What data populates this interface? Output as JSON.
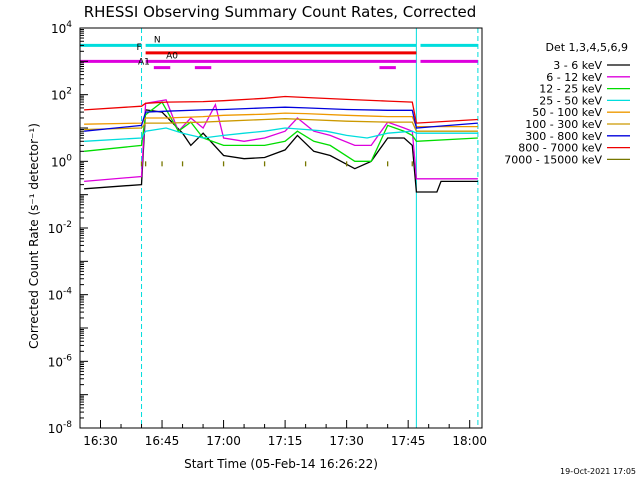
{
  "chart_data": {
    "type": "line",
    "title": "RHESSI Observing Summary Count Rates, Corrected",
    "xlabel": "Start Time (05-Feb-14 16:26:22)",
    "ylabel": "Corrected Count Rate (s⁻¹ detector⁻¹)",
    "y_scale": "log",
    "xlim": [
      "16:25",
      "18:03"
    ],
    "ylim": [
      1e-08,
      10000.0
    ],
    "x_ticks": [
      "16:30",
      "16:45",
      "17:00",
      "17:15",
      "17:30",
      "17:45",
      "18:00"
    ],
    "y_ticks": [
      {
        "value": 10000.0,
        "base": "10",
        "exp": "4"
      },
      {
        "value": 100,
        "base": "10",
        "exp": "2"
      },
      {
        "value": 1,
        "base": "10",
        "exp": "0"
      },
      {
        "value": 0.01,
        "base": "10",
        "exp": "-2"
      },
      {
        "value": 0.0001,
        "base": "10",
        "exp": "-4"
      },
      {
        "value": 1e-06,
        "base": "10",
        "exp": "-6"
      },
      {
        "value": 1e-08,
        "base": "10",
        "exp": "-8"
      }
    ],
    "legend": {
      "header": "Det 1,3,4,5,6,9",
      "placement": "right-outside"
    },
    "series": [
      {
        "name": "3 - 6 keV",
        "color": "#000000",
        "points": [
          [
            "16:26",
            0.15
          ],
          [
            "16:40",
            0.2
          ],
          [
            "16:41",
            35
          ],
          [
            "16:45",
            30
          ],
          [
            "16:50",
            7
          ],
          [
            "16:52",
            3
          ],
          [
            "16:55",
            7
          ],
          [
            "17:00",
            1.5
          ],
          [
            "17:05",
            1.2
          ],
          [
            "17:10",
            1.3
          ],
          [
            "17:15",
            2.2
          ],
          [
            "17:18",
            6
          ],
          [
            "17:22",
            2
          ],
          [
            "17:26",
            1.5
          ],
          [
            "17:32",
            0.6
          ],
          [
            "17:36",
            1.0
          ],
          [
            "17:40",
            5
          ],
          [
            "17:44",
            5
          ],
          [
            "17:46",
            3
          ],
          [
            "17:47",
            0.12
          ],
          [
            "17:52",
            0.12
          ],
          [
            "17:53",
            0.25
          ],
          [
            "18:02",
            0.25
          ]
        ]
      },
      {
        "name": "6 - 12 keV",
        "color": "#dd00dd",
        "points": [
          [
            "16:26",
            0.25
          ],
          [
            "16:40",
            0.35
          ],
          [
            "16:41",
            55
          ],
          [
            "16:46",
            70
          ],
          [
            "16:49",
            8
          ],
          [
            "16:52",
            20
          ],
          [
            "16:55",
            10
          ],
          [
            "16:58",
            50
          ],
          [
            "17:00",
            5
          ],
          [
            "17:05",
            4
          ],
          [
            "17:10",
            5
          ],
          [
            "17:15",
            8
          ],
          [
            "17:18",
            20
          ],
          [
            "17:22",
            8
          ],
          [
            "17:26",
            6
          ],
          [
            "17:32",
            3
          ],
          [
            "17:36",
            3
          ],
          [
            "17:40",
            15
          ],
          [
            "17:44",
            10
          ],
          [
            "17:46",
            8
          ],
          [
            "17:47",
            0.3
          ],
          [
            "18:02",
            0.3
          ]
        ]
      },
      {
        "name": "12 - 25 keV",
        "color": "#00dd00",
        "points": [
          [
            "16:26",
            2
          ],
          [
            "16:40",
            3
          ],
          [
            "16:41",
            25
          ],
          [
            "16:45",
            60
          ],
          [
            "16:49",
            8
          ],
          [
            "16:52",
            15
          ],
          [
            "16:55",
            5
          ],
          [
            "17:00",
            3
          ],
          [
            "17:05",
            3
          ],
          [
            "17:10",
            3
          ],
          [
            "17:15",
            4
          ],
          [
            "17:18",
            8
          ],
          [
            "17:22",
            4
          ],
          [
            "17:26",
            3
          ],
          [
            "17:32",
            1
          ],
          [
            "17:36",
            1
          ],
          [
            "17:40",
            12
          ],
          [
            "17:44",
            8
          ],
          [
            "17:46",
            6
          ],
          [
            "17:47",
            4
          ],
          [
            "18:02",
            5
          ]
        ]
      },
      {
        "name": "25 - 50 keV",
        "color": "#00dddd",
        "points": [
          [
            "16:26",
            4
          ],
          [
            "16:40",
            5
          ],
          [
            "16:41",
            8
          ],
          [
            "16:46",
            10
          ],
          [
            "16:50",
            7
          ],
          [
            "16:55",
            5
          ],
          [
            "17:00",
            6
          ],
          [
            "17:05",
            7
          ],
          [
            "17:10",
            8
          ],
          [
            "17:15",
            10
          ],
          [
            "17:20",
            9
          ],
          [
            "17:25",
            8
          ],
          [
            "17:30",
            6
          ],
          [
            "17:35",
            5
          ],
          [
            "17:40",
            7
          ],
          [
            "17:46",
            8
          ],
          [
            "17:47",
            7
          ],
          [
            "18:02",
            7
          ]
        ]
      },
      {
        "name": "50 - 100 keV",
        "color": "#ee9900",
        "points": [
          [
            "16:26",
            13
          ],
          [
            "16:40",
            14
          ],
          [
            "16:41",
            20
          ],
          [
            "16:46",
            20
          ],
          [
            "16:55",
            22
          ],
          [
            "17:00",
            24
          ],
          [
            "17:10",
            26
          ],
          [
            "17:15",
            28
          ],
          [
            "17:20",
            27
          ],
          [
            "17:30",
            24
          ],
          [
            "17:40",
            22
          ],
          [
            "17:46",
            22
          ],
          [
            "17:47",
            11
          ],
          [
            "18:02",
            11
          ]
        ]
      },
      {
        "name": "100 - 300 keV",
        "color": "#cc9900",
        "points": [
          [
            "16:26",
            9
          ],
          [
            "16:40",
            10
          ],
          [
            "16:41",
            14
          ],
          [
            "16:46",
            14
          ],
          [
            "16:55",
            15
          ],
          [
            "17:00",
            16
          ],
          [
            "17:10",
            18
          ],
          [
            "17:15",
            19
          ],
          [
            "17:20",
            18
          ],
          [
            "17:30",
            16
          ],
          [
            "17:40",
            15
          ],
          [
            "17:46",
            15
          ],
          [
            "17:47",
            8
          ],
          [
            "18:02",
            8
          ]
        ]
      },
      {
        "name": "300 - 800 keV",
        "color": "#0000dd",
        "points": [
          [
            "16:26",
            8
          ],
          [
            "16:40",
            12
          ],
          [
            "16:41",
            30
          ],
          [
            "16:46",
            32
          ],
          [
            "16:55",
            35
          ],
          [
            "17:00",
            36
          ],
          [
            "17:10",
            40
          ],
          [
            "17:15",
            42
          ],
          [
            "17:20",
            40
          ],
          [
            "17:30",
            36
          ],
          [
            "17:40",
            34
          ],
          [
            "17:46",
            34
          ],
          [
            "17:47",
            10
          ],
          [
            "18:02",
            14
          ]
        ]
      },
      {
        "name": "800 - 7000 keV",
        "color": "#ee0000",
        "points": [
          [
            "16:26",
            35
          ],
          [
            "16:40",
            45
          ],
          [
            "16:41",
            55
          ],
          [
            "16:46",
            60
          ],
          [
            "16:55",
            62
          ],
          [
            "17:00",
            66
          ],
          [
            "17:10",
            78
          ],
          [
            "17:15",
            88
          ],
          [
            "17:20",
            82
          ],
          [
            "17:30",
            72
          ],
          [
            "17:40",
            64
          ],
          [
            "17:46",
            60
          ],
          [
            "17:47",
            14
          ],
          [
            "18:02",
            18
          ]
        ]
      },
      {
        "name": "7000 - 15000 keV",
        "color": "#777700",
        "points": [
          [
            "16:40",
            1.0
          ],
          [
            "16:41",
            1.0
          ],
          [
            "16:45",
            1.0
          ],
          [
            "16:50",
            1.0
          ],
          [
            "17:00",
            1.0
          ],
          [
            "17:10",
            1.0
          ],
          [
            "17:20",
            1.0
          ],
          [
            "17:30",
            1.0
          ],
          [
            "17:40",
            1.0
          ],
          [
            "17:46",
            1.0
          ]
        ]
      }
    ],
    "flags": [
      {
        "label": "N",
        "color": "#00dddd",
        "y_value": 3000,
        "segments": [
          [
            "16:25",
            "16:40"
          ],
          [
            "16:41",
            "17:47"
          ],
          [
            "17:48",
            "18:02"
          ]
        ]
      },
      {
        "label": "F",
        "color": "#ee0000",
        "y_value": 1800,
        "segments": [
          [
            "16:41",
            "17:47"
          ]
        ]
      },
      {
        "label": "A0",
        "color": "#dd00dd",
        "y_value": 1000,
        "segments": [
          [
            "16:25",
            "16:40"
          ],
          [
            "16:41",
            "17:47"
          ],
          [
            "17:48",
            "18:02"
          ]
        ]
      },
      {
        "label": "A1",
        "color": "#dd00dd",
        "y_value": 650,
        "segments": [
          [
            "16:43",
            "16:47"
          ],
          [
            "16:53",
            "16:57"
          ],
          [
            "17:38",
            "17:42"
          ]
        ]
      }
    ],
    "vertical_lines": [
      {
        "x": "16:25",
        "style": "solid",
        "color": "#00dddd"
      },
      {
        "x": "16:40",
        "style": "dashed",
        "color": "#00dddd"
      },
      {
        "x": "17:47",
        "style": "solid",
        "color": "#00dddd"
      },
      {
        "x": "18:02",
        "style": "dashed",
        "color": "#00dddd"
      }
    ]
  },
  "stamp": "19-Oct-2021 17:05"
}
